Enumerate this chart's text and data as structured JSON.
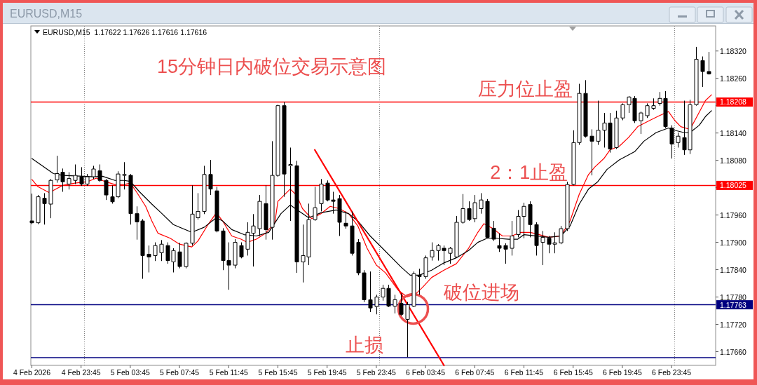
{
  "chart_data": {
    "type": "candlestick",
    "title": "15分钟日内破位交易示意图",
    "subtitle": "EURUSD,M15  1.17622 1.17626 1.17616 1.17616",
    "annotations": [
      "EURUSD,M15",
      {
        "text": "压力位止盈",
        "x": "2026-02-06T08:00",
        "y": 1.18208
      },
      {
        "text": "2：1止盈",
        "x": "2026-02-06T09:00",
        "y": 1.18025
      },
      {
        "text": "破位进场",
        "x": "2026-02-06T05:15",
        "y": 1.17763
      },
      {
        "text": "止损",
        "x": "2026-02-05T21:15",
        "y": 1.17647
      }
    ],
    "xlim": [
      "2026-02-04T19:40",
      "2026-02-07T03:20"
    ],
    "ylim": [
      1.1763,
      1.18375
    ],
    "xticks": [
      {
        "value": "2026-02-04T19:45",
        "label": "4 Feb 2026"
      },
      {
        "value": "2026-02-04T23:45",
        "label": "4 Feb 23:45"
      },
      {
        "value": "2026-02-05T03:45",
        "label": "5 Feb 03:45"
      },
      {
        "value": "2026-02-05T07:45",
        "label": "5 Feb 07:45"
      },
      {
        "value": "2026-02-05T11:45",
        "label": "5 Feb 11:45"
      },
      {
        "value": "2026-02-05T15:45",
        "label": "5 Feb 15:45"
      },
      {
        "value": "2026-02-05T19:45",
        "label": "5 Feb 19:45"
      },
      {
        "value": "2026-02-05T23:45",
        "label": "5 Feb 23:45"
      },
      {
        "value": "2026-02-06T03:45",
        "label": "6 Feb 03:45"
      },
      {
        "value": "2026-02-06T07:45",
        "label": "6 Feb 07:45"
      },
      {
        "value": "2026-02-06T11:45",
        "label": "6 Feb 11:45"
      },
      {
        "value": "2026-02-06T15:45",
        "label": "6 Feb 15:45"
      },
      {
        "value": "2026-02-06T19:45",
        "label": "6 Feb 19:45"
      },
      {
        "value": "2026-02-06T23:45",
        "label": "6 Feb 23:45"
      }
    ],
    "yticks": [
      {
        "value": 1.1766,
        "label": "1.17660"
      },
      {
        "value": 1.1772,
        "label": "1.17720"
      },
      {
        "value": 1.1778,
        "label": "1.17780"
      },
      {
        "value": 1.1784,
        "label": "1.17840"
      },
      {
        "value": 1.179,
        "label": "1.17900"
      },
      {
        "value": 1.1796,
        "label": "1.17960"
      },
      {
        "value": 1.1802,
        "label": null
      },
      {
        "value": 1.1808,
        "label": "1.18080"
      },
      {
        "value": 1.1814,
        "label": "1.18140"
      },
      {
        "value": 1.182,
        "label": null
      },
      {
        "value": 1.1826,
        "label": "1.18260"
      },
      {
        "value": 1.1832,
        "label": "1.18320"
      }
    ],
    "ref_lines": [
      {
        "axis": "x",
        "value": "2026-02-05T00:00",
        "color": "#808080",
        "line_style": "dotted"
      },
      {
        "axis": "x",
        "value": "2026-02-06T00:00",
        "color": "#808080",
        "line_style": "dotted"
      },
      {
        "axis": "x",
        "value": "2026-02-07T00:00",
        "color": "#808080",
        "line_style": "dotted"
      },
      {
        "axis": "y",
        "value": 1.18208,
        "label": "1.18208",
        "color": "#ff0000"
      },
      {
        "axis": "y",
        "value": 1.18025,
        "label": "1.18025",
        "color": "#ff0000"
      },
      {
        "axis": "y",
        "value": 1.17763,
        "label": "1.17763",
        "color": "#000080"
      },
      {
        "axis": "y",
        "value": 1.17647,
        "color": "#000080"
      }
    ],
    "x": [
      "2026-02-04T19:45",
      "2026-02-04T20:15",
      "2026-02-04T20:45",
      "2026-02-04T21:15",
      "2026-02-04T21:45",
      "2026-02-04T22:15",
      "2026-02-04T22:45",
      "2026-02-04T23:15",
      "2026-02-04T23:45",
      "2026-02-05T00:15",
      "2026-02-05T00:45",
      "2026-02-05T01:15",
      "2026-02-05T01:45",
      "2026-02-05T02:15",
      "2026-02-05T02:45",
      "2026-02-05T03:15",
      "2026-02-05T03:45",
      "2026-02-05T04:15",
      "2026-02-05T04:45",
      "2026-02-05T05:15",
      "2026-02-05T05:45",
      "2026-02-05T06:15",
      "2026-02-05T06:45",
      "2026-02-05T07:15",
      "2026-02-05T07:45",
      "2026-02-05T08:15",
      "2026-02-05T08:45",
      "2026-02-05T09:15",
      "2026-02-05T09:45",
      "2026-02-05T10:15",
      "2026-02-05T10:45",
      "2026-02-05T11:15",
      "2026-02-05T11:45",
      "2026-02-05T12:15",
      "2026-02-05T12:45",
      "2026-02-05T13:15",
      "2026-02-05T13:45",
      "2026-02-05T14:15",
      "2026-02-05T14:45",
      "2026-02-05T15:15",
      "2026-02-05T15:45",
      "2026-02-05T16:15",
      "2026-02-05T16:45",
      "2026-02-05T17:15",
      "2026-02-05T17:45",
      "2026-02-05T18:15",
      "2026-02-05T18:45",
      "2026-02-05T19:15",
      "2026-02-05T19:45",
      "2026-02-05T20:15",
      "2026-02-05T20:45",
      "2026-02-05T21:15",
      "2026-02-05T21:45",
      "2026-02-05T22:15",
      "2026-02-05T22:45",
      "2026-02-05T23:15",
      "2026-02-05T23:45",
      "2026-02-06T00:15",
      "2026-02-06T00:45",
      "2026-02-06T01:15",
      "2026-02-06T01:45",
      "2026-02-06T02:15",
      "2026-02-06T02:45",
      "2026-02-06T03:15",
      "2026-02-06T03:45",
      "2026-02-06T04:15",
      "2026-02-06T04:45",
      "2026-02-06T05:15",
      "2026-02-06T05:45",
      "2026-02-06T06:15",
      "2026-02-06T06:45",
      "2026-02-06T07:15",
      "2026-02-06T07:45",
      "2026-02-06T08:15",
      "2026-02-06T08:45",
      "2026-02-06T09:15",
      "2026-02-06T09:45",
      "2026-02-06T10:15",
      "2026-02-06T10:45",
      "2026-02-06T11:15",
      "2026-02-06T11:45",
      "2026-02-06T12:15",
      "2026-02-06T12:45",
      "2026-02-06T13:15",
      "2026-02-06T13:45",
      "2026-02-06T14:15",
      "2026-02-06T14:45",
      "2026-02-06T15:15",
      "2026-02-06T15:45",
      "2026-02-06T16:15",
      "2026-02-06T16:45",
      "2026-02-06T17:15",
      "2026-02-06T17:45",
      "2026-02-06T18:15",
      "2026-02-06T18:45",
      "2026-02-06T19:15",
      "2026-02-06T19:45",
      "2026-02-06T20:15",
      "2026-02-06T20:45",
      "2026-02-06T21:15",
      "2026-02-06T21:45",
      "2026-02-06T22:15",
      "2026-02-06T22:45",
      "2026-02-06T23:15",
      "2026-02-06T23:45",
      "2026-02-07T00:15",
      "2026-02-07T00:45",
      "2026-02-07T01:15",
      "2026-02-07T01:45",
      "2026-02-07T02:15",
      "2026-02-07T02:45"
    ],
    "ohlc": [
      [
        1.17947,
        1.18007,
        1.1794,
        1.17943
      ],
      [
        1.17943,
        1.18004,
        1.1794,
        1.18
      ],
      [
        1.17997,
        1.18008,
        1.17939,
        1.17985
      ],
      [
        1.17984,
        1.18039,
        1.17953,
        1.18036
      ],
      [
        1.18037,
        1.1809,
        1.18031,
        1.18051
      ],
      [
        1.18054,
        1.18062,
        1.18011,
        1.18033
      ],
      [
        1.18028,
        1.18054,
        1.18016,
        1.1804
      ],
      [
        1.18036,
        1.18071,
        1.18028,
        1.18047
      ],
      [
        1.18044,
        1.18065,
        1.18024,
        1.18028
      ],
      [
        1.18028,
        1.1805,
        1.18024,
        1.18044
      ],
      [
        1.18044,
        1.18068,
        1.18039,
        1.18061
      ],
      [
        1.18057,
        1.18071,
        1.18033,
        1.18036
      ],
      [
        1.18036,
        1.18039,
        1.17993,
        1.18004
      ],
      [
        1.18,
        1.18025,
        1.17985,
        1.17989
      ],
      [
        1.18,
        1.18056,
        1.17997,
        1.1805
      ],
      [
        1.18047,
        1.18076,
        1.18016,
        1.18049
      ],
      [
        1.18047,
        1.1805,
        1.17939,
        1.17963
      ],
      [
        1.17963,
        1.17979,
        1.17906,
        1.17945
      ],
      [
        1.17947,
        1.17951,
        1.1782,
        1.17871
      ],
      [
        1.17874,
        1.17893,
        1.17834,
        1.17868
      ],
      [
        1.17871,
        1.179,
        1.17859,
        1.17893
      ],
      [
        1.17877,
        1.17905,
        1.17859,
        1.17896
      ],
      [
        1.17893,
        1.179,
        1.17853,
        1.1786
      ],
      [
        1.17857,
        1.17887,
        1.17834,
        1.17882
      ],
      [
        1.17879,
        1.17899,
        1.17843,
        1.17847
      ],
      [
        1.17847,
        1.179,
        1.17843,
        1.17898
      ],
      [
        1.17898,
        1.18025,
        1.17893,
        1.17962
      ],
      [
        1.17954,
        1.18008,
        1.1795,
        1.17968
      ],
      [
        1.17968,
        1.18068,
        1.17962,
        1.18049
      ],
      [
        1.18049,
        1.18081,
        1.18004,
        1.18017
      ],
      [
        1.18013,
        1.18022,
        1.17922,
        1.17925
      ],
      [
        1.17925,
        1.17931,
        1.17839,
        1.1786
      ],
      [
        1.1786,
        1.179,
        1.17796,
        1.1785
      ],
      [
        1.1785,
        1.17907,
        1.17843,
        1.179
      ],
      [
        1.17893,
        1.179,
        1.17865,
        1.17868
      ],
      [
        1.17885,
        1.17944,
        1.17871,
        1.17922
      ],
      [
        1.1792,
        1.17962,
        1.17847,
        1.17936
      ],
      [
        1.1793,
        1.18004,
        1.17914,
        1.1799
      ],
      [
        1.17985,
        1.18025,
        1.17906,
        1.17928
      ],
      [
        1.17933,
        1.18122,
        1.17906,
        1.18047
      ],
      [
        1.18047,
        1.18202,
        1.18044,
        1.182
      ],
      [
        1.182,
        1.18208,
        1.18,
        1.1805
      ],
      [
        1.18068,
        1.18108,
        1.17947,
        1.18071
      ],
      [
        1.18068,
        1.18079,
        1.17833,
        1.17857
      ],
      [
        1.17857,
        1.17939,
        1.17812,
        1.17871
      ],
      [
        1.17868,
        1.17985,
        1.1785,
        1.1795
      ],
      [
        1.1795,
        1.18022,
        1.17947,
        1.17976
      ],
      [
        1.17985,
        1.18039,
        1.17968,
        1.18028
      ],
      [
        1.1803,
        1.18036,
        1.1799,
        1.17993
      ],
      [
        1.17993,
        1.18011,
        1.17963,
        1.1799
      ],
      [
        1.17996,
        1.18004,
        1.17914,
        1.17944
      ],
      [
        1.17942,
        1.17968,
        1.1793,
        1.17936
      ],
      [
        1.17936,
        1.17968,
        1.17871,
        1.17876
      ],
      [
        1.179,
        1.17907,
        1.17828,
        1.17833
      ],
      [
        1.17833,
        1.17839,
        1.17769,
        1.17774
      ],
      [
        1.17774,
        1.17836,
        1.17747,
        1.17756
      ],
      [
        1.17759,
        1.17785,
        1.17742,
        1.1778
      ],
      [
        1.1778,
        1.17807,
        1.17772,
        1.17799
      ],
      [
        1.17799,
        1.17807,
        1.17758,
        1.1776
      ],
      [
        1.1776,
        1.17785,
        1.17744,
        1.17774
      ],
      [
        1.17766,
        1.17788,
        1.17739,
        1.17742
      ],
      [
        1.17731,
        1.17769,
        1.17648,
        1.17763
      ],
      [
        1.1776,
        1.17836,
        1.17758,
        1.17831
      ],
      [
        1.17828,
        1.17842,
        1.17785,
        1.17825
      ],
      [
        1.17825,
        1.17871,
        1.1782,
        1.17866
      ],
      [
        1.17868,
        1.179,
        1.1786,
        1.17882
      ],
      [
        1.17882,
        1.17896,
        1.1786,
        1.17893
      ],
      [
        1.17887,
        1.17893,
        1.1785,
        1.17882
      ],
      [
        1.17876,
        1.1789,
        1.17853,
        1.17887
      ],
      [
        1.17868,
        1.17958,
        1.17866,
        1.17944
      ],
      [
        1.17944,
        1.18006,
        1.17941,
        1.17974
      ],
      [
        1.17974,
        1.1799,
        1.17947,
        1.1795
      ],
      [
        1.17952,
        1.18004,
        1.17944,
        1.17987
      ],
      [
        1.17974,
        1.18008,
        1.17963,
        1.17993
      ],
      [
        1.1799,
        1.17995,
        1.17909,
        1.17911
      ],
      [
        1.17931,
        1.17947,
        1.17903,
        1.17907
      ],
      [
        1.17893,
        1.1792,
        1.17879,
        1.17887
      ],
      [
        1.17893,
        1.17898,
        1.17853,
        1.17885
      ],
      [
        1.17887,
        1.17947,
        1.17871,
        1.17914
      ],
      [
        1.17917,
        1.17971,
        1.17911,
        1.17957
      ],
      [
        1.17957,
        1.17987,
        1.17909,
        1.17979
      ],
      [
        1.17983,
        1.1799,
        1.17911,
        1.17939
      ],
      [
        1.17939,
        1.17944,
        1.17871,
        1.17893
      ],
      [
        1.179,
        1.17925,
        1.1785,
        1.17911
      ],
      [
        1.17909,
        1.17914,
        1.17876,
        1.17896
      ],
      [
        1.17896,
        1.17922,
        1.17876,
        1.17899
      ],
      [
        1.17899,
        1.17936,
        1.17896,
        1.1793
      ],
      [
        1.1793,
        1.18033,
        1.17925,
        1.18027
      ],
      [
        1.18027,
        1.18146,
        1.18025,
        1.18119
      ],
      [
        1.18119,
        1.18248,
        1.18114,
        1.18227
      ],
      [
        1.18227,
        1.18256,
        1.1813,
        1.18133
      ],
      [
        1.18133,
        1.18148,
        1.18047,
        1.18122
      ],
      [
        1.18122,
        1.18211,
        1.18114,
        1.18146
      ],
      [
        1.18146,
        1.18184,
        1.18108,
        1.18162
      ],
      [
        1.18162,
        1.18184,
        1.18097,
        1.18105
      ],
      [
        1.18108,
        1.18189,
        1.18105,
        1.18173
      ],
      [
        1.18173,
        1.18205,
        1.18168,
        1.18202
      ],
      [
        1.18202,
        1.18221,
        1.18184,
        1.18219
      ],
      [
        1.18216,
        1.18221,
        1.18162,
        1.18167
      ],
      [
        1.18167,
        1.18187,
        1.18138,
        1.18184
      ],
      [
        1.18178,
        1.18205,
        1.18173,
        1.182
      ],
      [
        1.18194,
        1.18216,
        1.18191,
        1.182
      ],
      [
        1.18205,
        1.1823,
        1.182,
        1.18216
      ],
      [
        1.18216,
        1.18232,
        1.18151,
        1.18154
      ],
      [
        1.18151,
        1.18157,
        1.18084,
        1.18116
      ],
      [
        1.18119,
        1.18141,
        1.18108,
        1.18133
      ],
      [
        1.1813,
        1.18211,
        1.18092,
        1.18103
      ],
      [
        1.18103,
        1.18213,
        1.18094,
        1.18202
      ],
      [
        1.18202,
        1.18329,
        1.182,
        1.18302
      ],
      [
        1.18299,
        1.18308,
        1.18241,
        1.18275
      ],
      [
        1.18275,
        1.18318,
        1.18268,
        1.1827
      ]
    ],
    "series": [
      {
        "type": "line",
        "color": "#ff0000",
        "x": [
          "2026-02-04T19:45",
          "2026-02-04T20:15",
          "2026-02-04T21:15",
          "2026-02-04T21:30",
          "2026-02-04T22:15",
          "2026-02-04T23:15",
          "2026-02-05T00:15",
          "2026-02-05T01:00",
          "2026-02-05T01:45",
          "2026-02-05T02:30",
          "2026-02-05T03:15",
          "2026-02-05T03:45",
          "2026-02-05T04:15",
          "2026-02-05T05:00",
          "2026-02-05T05:30",
          "2026-02-05T06:00",
          "2026-02-05T07:00",
          "2026-02-05T07:45",
          "2026-02-05T08:45",
          "2026-02-05T09:15",
          "2026-02-05T10:00",
          "2026-02-05T10:45",
          "2026-02-05T11:15",
          "2026-02-05T12:00",
          "2026-02-05T12:45",
          "2026-02-05T13:15",
          "2026-02-05T14:00",
          "2026-02-05T14:45",
          "2026-02-05T15:30",
          "2026-02-05T15:45",
          "2026-02-05T16:45",
          "2026-02-05T17:15",
          "2026-02-05T17:45",
          "2026-02-05T18:30",
          "2026-02-05T19:15",
          "2026-02-05T20:00",
          "2026-02-05T20:45",
          "2026-02-05T21:30",
          "2026-02-05T22:15",
          "2026-02-05T23:00",
          "2026-02-05T23:45",
          "2026-02-06T00:30",
          "2026-02-06T01:30",
          "2026-02-06T02:15",
          "2026-02-06T03:00",
          "2026-02-06T03:30",
          "2026-02-06T04:15",
          "2026-02-06T05:15",
          "2026-02-06T06:15",
          "2026-02-06T07:15",
          "2026-02-06T08:00",
          "2026-02-06T08:30",
          "2026-02-06T09:15",
          "2026-02-06T10:00",
          "2026-02-06T10:45",
          "2026-02-06T11:30",
          "2026-02-06T12:15",
          "2026-02-06T13:00",
          "2026-02-06T13:45",
          "2026-02-06T14:45",
          "2026-02-06T15:30",
          "2026-02-06T16:15",
          "2026-02-06T17:00",
          "2026-02-06T17:30",
          "2026-02-06T18:15",
          "2026-02-06T18:45",
          "2026-02-06T19:30",
          "2026-02-06T20:15",
          "2026-02-06T21:00",
          "2026-02-06T22:00",
          "2026-02-06T22:45",
          "2026-02-06T23:30",
          "2026-02-07T00:00",
          "2026-02-07T00:30",
          "2026-02-07T01:15",
          "2026-02-07T01:45",
          "2026-02-07T02:30",
          "2026-02-07T03:00"
        ],
        "values": [
          1.18038,
          1.18022,
          1.18008,
          1.18014,
          1.18025,
          1.1803,
          1.18033,
          1.18041,
          1.18033,
          1.18027,
          1.18027,
          1.1803,
          1.18011,
          1.17979,
          1.17947,
          1.1792,
          1.17909,
          1.17896,
          1.1789,
          1.17903,
          1.17936,
          1.17965,
          1.17947,
          1.17914,
          1.17907,
          1.179,
          1.17907,
          1.1792,
          1.17943,
          1.1799,
          1.18017,
          1.18004,
          1.17974,
          1.17952,
          1.17963,
          1.17979,
          1.17974,
          1.17963,
          1.17936,
          1.17887,
          1.1785,
          1.17833,
          1.17796,
          1.1778,
          1.17788,
          1.17801,
          1.17823,
          1.17839,
          1.17853,
          1.17887,
          1.17922,
          1.17941,
          1.1793,
          1.17914,
          1.17914,
          1.17922,
          1.17922,
          1.17917,
          1.17911,
          1.17914,
          1.17947,
          1.18006,
          1.18049,
          1.18065,
          1.18084,
          1.18103,
          1.18111,
          1.1813,
          1.18154,
          1.18168,
          1.18178,
          1.18187,
          1.18168,
          1.18154,
          1.18148,
          1.18173,
          1.18211,
          1.18224
        ]
      },
      {
        "type": "line",
        "color": "#000000",
        "x": [
          "2026-02-04T19:45",
          "2026-02-04T21:30",
          "2026-02-04T22:15",
          "2026-02-05T00:00",
          "2026-02-05T00:45",
          "2026-02-05T01:30",
          "2026-02-05T02:30",
          "2026-02-05T03:15",
          "2026-02-05T03:45",
          "2026-02-05T04:30",
          "2026-02-05T05:30",
          "2026-02-05T06:15",
          "2026-02-05T07:15",
          "2026-02-05T08:45",
          "2026-02-05T09:45",
          "2026-02-05T10:45",
          "2026-02-05T11:15",
          "2026-02-05T12:00",
          "2026-02-05T13:00",
          "2026-02-05T14:00",
          "2026-02-05T15:00",
          "2026-02-05T16:00",
          "2026-02-05T16:45",
          "2026-02-05T17:30",
          "2026-02-05T18:15",
          "2026-02-05T19:15",
          "2026-02-05T20:30",
          "2026-02-05T21:30",
          "2026-02-05T22:15",
          "2026-02-05T23:15",
          "2026-02-06T00:15",
          "2026-02-06T01:45",
          "2026-02-06T02:30",
          "2026-02-06T03:15",
          "2026-02-06T04:15",
          "2026-02-06T05:15",
          "2026-02-06T06:15",
          "2026-02-06T07:15",
          "2026-02-06T08:00",
          "2026-02-06T08:45",
          "2026-02-06T09:30",
          "2026-02-06T10:30",
          "2026-02-06T11:15",
          "2026-02-06T11:45",
          "2026-02-06T12:45",
          "2026-02-06T13:45",
          "2026-02-06T14:45",
          "2026-02-06T15:30",
          "2026-02-06T16:15",
          "2026-02-06T17:00",
          "2026-02-06T17:45",
          "2026-02-06T18:30",
          "2026-02-06T19:30",
          "2026-02-06T20:45",
          "2026-02-06T21:30",
          "2026-02-06T22:30",
          "2026-02-06T23:30",
          "2026-02-07T00:00",
          "2026-02-07T00:45",
          "2026-02-07T01:15",
          "2026-02-07T02:00",
          "2026-02-07T02:30",
          "2026-02-07T03:00"
        ],
        "values": [
          1.18084,
          1.18051,
          1.18047,
          1.18045,
          1.18044,
          1.18045,
          1.18036,
          1.18036,
          1.18034,
          1.18011,
          1.17984,
          1.17965,
          1.17939,
          1.17922,
          1.17933,
          1.17954,
          1.17947,
          1.17928,
          1.17917,
          1.17914,
          1.17922,
          1.17963,
          1.17982,
          1.17968,
          1.17954,
          1.17965,
          1.17971,
          1.17963,
          1.17947,
          1.17914,
          1.17887,
          1.17846,
          1.17828,
          1.17828,
          1.17839,
          1.17855,
          1.17866,
          1.17882,
          1.179,
          1.17909,
          1.17909,
          1.17907,
          1.17907,
          1.17917,
          1.17914,
          1.17911,
          1.17914,
          1.17936,
          1.17984,
          1.18017,
          1.18033,
          1.1806,
          1.18081,
          1.18099,
          1.18122,
          1.18141,
          1.18151,
          1.18146,
          1.18141,
          1.18141,
          1.18157,
          1.18176,
          1.18189
        ]
      },
      {
        "type": "line",
        "color": "#ff0000",
        "x": [
          "2026-02-05T18:45",
          "2026-02-06T05:15"
        ],
        "values": [
          1.18103,
          1.1763
        ]
      },
      {
        "type": "scatter",
        "color": "#ec4f4f",
        "marker": "circle",
        "x": [
          "2026-02-06T02:45"
        ],
        "values": [
          1.17754
        ]
      }
    ]
  }
}
